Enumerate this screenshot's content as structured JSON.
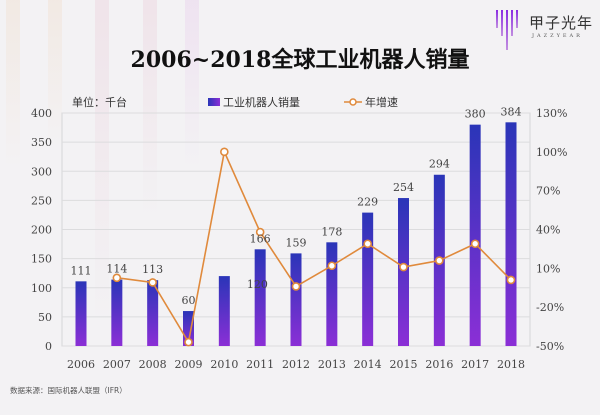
{
  "logo": {
    "name": "甲子光年",
    "sub": "JAZZYEAR"
  },
  "chart_data": {
    "type": "bar+line",
    "title": "2006~2018全球工业机器人销量",
    "unit_label": "单位：千台",
    "categories": [
      "2006",
      "2007",
      "2008",
      "2009",
      "2010",
      "2011",
      "2012",
      "2013",
      "2014",
      "2015",
      "2016",
      "2017",
      "2018"
    ],
    "series": [
      {
        "name": "工业机器人销量",
        "type": "bar",
        "axis": "left",
        "color": "#8b2fd6",
        "color_top": "#2a35b8",
        "values": [
          111,
          114,
          113,
          60,
          120,
          166,
          159,
          178,
          229,
          254,
          294,
          380,
          384
        ]
      },
      {
        "name": "年增速",
        "type": "line",
        "axis": "right",
        "color": "#e08a3c",
        "values": [
          null,
          2.7,
          -0.9,
          -47,
          100,
          38,
          -4,
          12,
          29,
          11,
          16,
          29,
          1
        ]
      }
    ],
    "left_axis": {
      "ylim": [
        0,
        400
      ],
      "ticks": [
        "0",
        "50",
        "100",
        "150",
        "200",
        "250",
        "300",
        "350",
        "400"
      ]
    },
    "right_axis": {
      "ylim": [
        -50,
        130
      ],
      "ticks": [
        "-50%",
        "-20%",
        "10%",
        "40%",
        "70%",
        "100%",
        "130%"
      ]
    },
    "grid": true,
    "legend": "top"
  },
  "source": "数据来源：国际机器人联盟（IFR）"
}
